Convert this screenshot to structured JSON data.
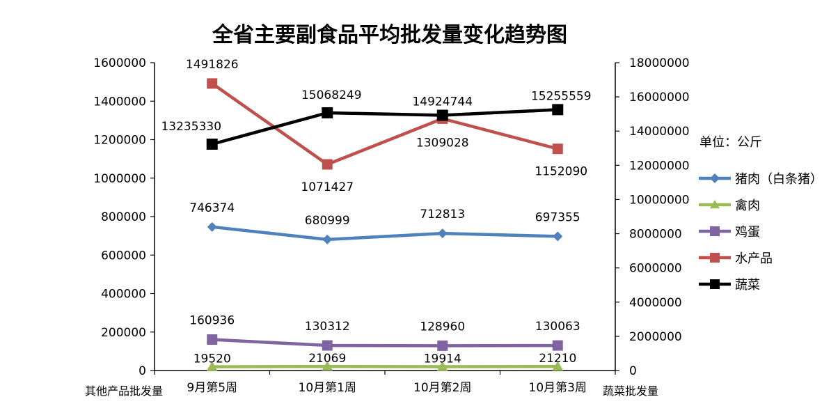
{
  "chart_data": {
    "type": "line",
    "title": "全省主要副食品平均批发量变化趋势图",
    "unit_label": "单位：公斤",
    "categories": [
      "9月第5周",
      "10月第1周",
      "10月第2周",
      "10月第3周"
    ],
    "left_axis": {
      "caption": "其他产品批发量",
      "ylim": [
        0,
        1600000
      ],
      "ticks": [
        0,
        200000,
        400000,
        600000,
        800000,
        1000000,
        1200000,
        1400000,
        1600000
      ]
    },
    "right_axis": {
      "caption": "蔬菜批发量",
      "ylim": [
        0,
        18000000
      ],
      "ticks": [
        0,
        2000000,
        4000000,
        6000000,
        8000000,
        10000000,
        12000000,
        14000000,
        16000000,
        18000000
      ]
    },
    "series": [
      {
        "name": "猪肉（白条猪）",
        "axis": "left",
        "color": "#4F81BD",
        "marker": "diamond",
        "values": [
          746374,
          680999,
          712813,
          697355
        ],
        "label_pos": "above"
      },
      {
        "name": "禽肉",
        "axis": "left",
        "color": "#9BBB59",
        "marker": "triangle",
        "values": [
          19520,
          21069,
          19914,
          21210
        ],
        "label_pos": "near"
      },
      {
        "name": "鸡蛋",
        "axis": "left",
        "color": "#8064A2",
        "marker": "square",
        "values": [
          160936,
          130312,
          128960,
          130063
        ],
        "label_pos": "above"
      },
      {
        "name": "水产品",
        "axis": "left",
        "color": "#C0504D",
        "marker": "square",
        "values": [
          1491826,
          1071427,
          1309028,
          1152090
        ],
        "label_pos": "mixed"
      },
      {
        "name": "蔬菜",
        "axis": "right",
        "color": "#000000",
        "marker": "square",
        "values": [
          13235330,
          15068249,
          14924744,
          15255559
        ],
        "label_pos": "above"
      }
    ]
  }
}
